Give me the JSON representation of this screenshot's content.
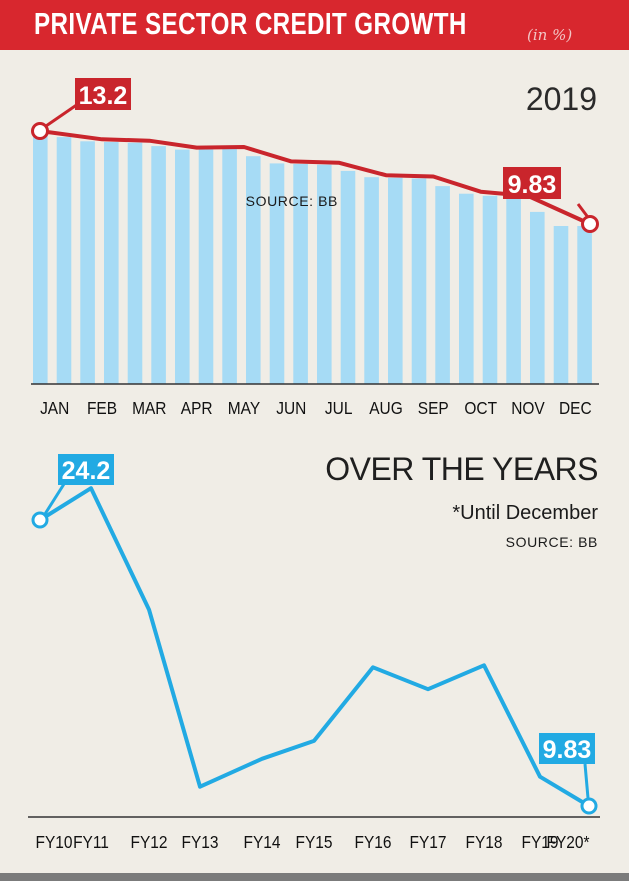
{
  "header": {
    "title": "PRIVATE SECTOR CREDIT GROWTH",
    "unit": "(in %)",
    "colors": {
      "banner": "#d8272e",
      "bars": "#a6dbf5",
      "monthly_line": "#c9252c",
      "yearly_line": "#22aae3"
    }
  },
  "chart_data": [
    {
      "type": "bar",
      "title": "2019",
      "source": "SOURCE: BB",
      "categories": [
        "JAN",
        "FEB",
        "MAR",
        "APR",
        "MAY",
        "JUN",
        "JUL",
        "AUG",
        "SEP",
        "OCT",
        "NOV",
        "DEC"
      ],
      "series": [
        {
          "values": [
            13.2,
            12.9,
            12.85,
            12.6,
            12.62,
            12.1,
            12.05,
            11.6,
            11.55,
            11.0,
            10.85,
            9.83
          ]
        }
      ],
      "labels": {
        "first": "13.2",
        "last": "9.83"
      },
      "overlay_line": true,
      "grid": false
    },
    {
      "type": "line",
      "title": "OVER THE YEARS",
      "note": "*Until December",
      "source": "SOURCE: BB",
      "categories": [
        "FY10",
        "FY11",
        "FY12",
        "FY13",
        "FY14",
        "FY15",
        "FY16",
        "FY17",
        "FY18",
        "FY19",
        "FY20*"
      ],
      "series": [
        {
          "values": [
            24.2,
            25.8,
            19.7,
            10.8,
            12.2,
            13.1,
            16.8,
            15.7,
            16.9,
            11.3,
            9.83
          ]
        }
      ],
      "labels": {
        "first": "24.2",
        "last": "9.83"
      },
      "grid": false
    }
  ]
}
